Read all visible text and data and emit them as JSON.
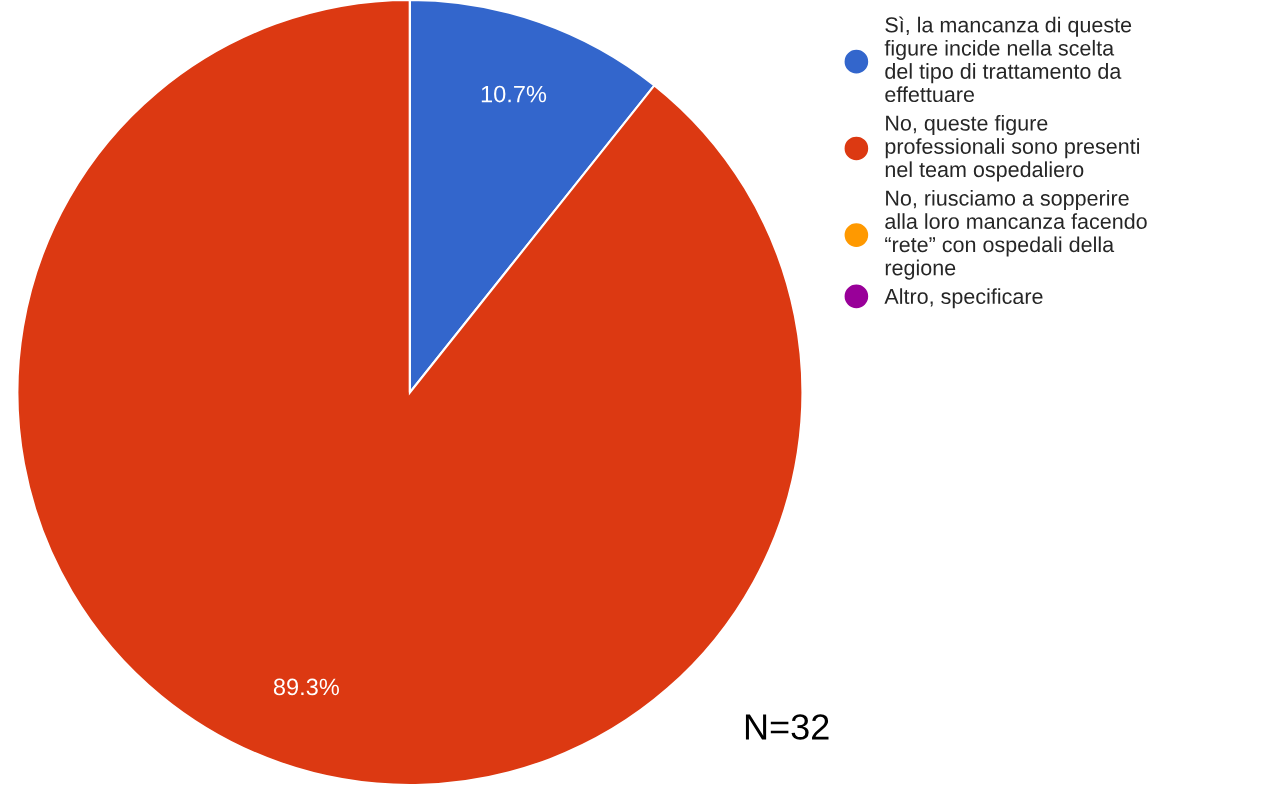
{
  "chart_data": {
    "type": "pie",
    "categories": [
      "Sì, la mancanza di queste figure incide nella scelta del tipo di trattamento da effettuare",
      "No, queste figure professionali sono presenti nel team ospedaliero",
      "No, riusciamo a sopperire alla loro mancanza facendo “rete” con ospedali della regione",
      "Altro, specificare"
    ],
    "values": [
      10.7,
      89.3,
      0,
      0
    ],
    "colors": [
      "#3366cc",
      "#dc3912",
      "#ff9900",
      "#990099"
    ],
    "value_labels": [
      "10.7%",
      "89.3%",
      null,
      null
    ],
    "legend": "right",
    "annotations": [
      "N=32"
    ]
  }
}
